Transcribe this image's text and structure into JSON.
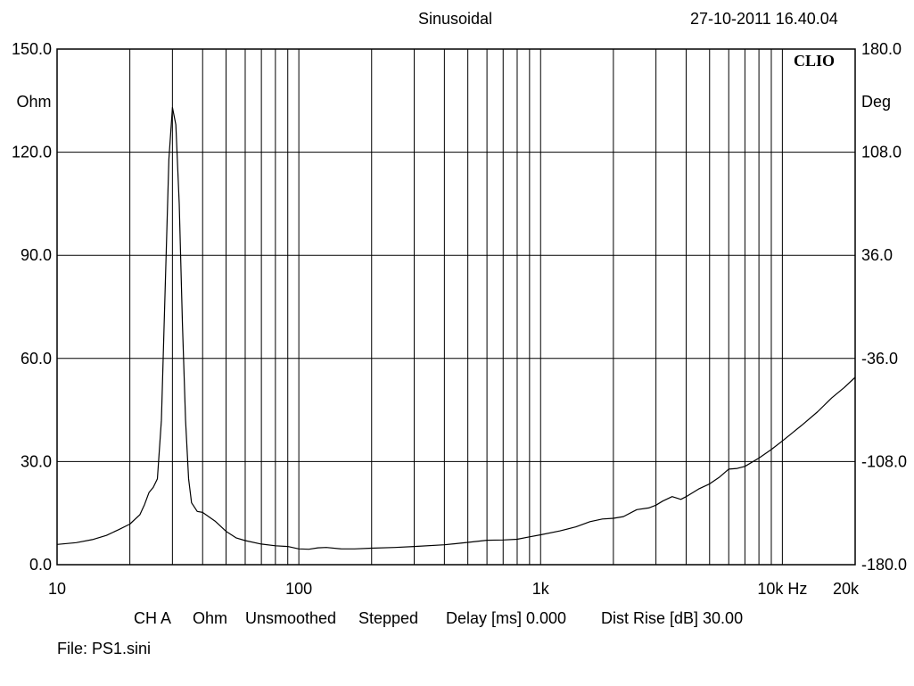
{
  "header": {
    "title": "Sinusoidal",
    "timestamp": "27-10-2011 16.40.04"
  },
  "footer": {
    "channel": "CH A",
    "unit": "Ohm",
    "smoothing": "Unsmoothed",
    "mode": "Stepped",
    "delay": "Delay [ms] 0.000",
    "dist_rise": "Dist Rise [dB] 30.00",
    "file": "File: PS1.sini"
  },
  "chart_data": {
    "type": "line",
    "brand": "CLIO",
    "x_scale": "log",
    "xlim": [
      10,
      20000
    ],
    "grid": true,
    "y_left": {
      "unit": "Ohm",
      "range": [
        0,
        150
      ],
      "ticks": [
        "150.0",
        "120.0",
        "90.0",
        "60.0",
        "30.0",
        "0.0"
      ]
    },
    "y_right": {
      "unit": "Deg",
      "range": [
        -180,
        180
      ],
      "ticks": [
        "180.0",
        "108.0",
        "36.0",
        "-36.0",
        "-108.0",
        "-180.0"
      ]
    },
    "x_tick_labels": [
      {
        "value": 10,
        "label": "10"
      },
      {
        "value": 100,
        "label": "100"
      },
      {
        "value": 1000,
        "label": "1k"
      },
      {
        "value": 10000,
        "label": "10k Hz"
      },
      {
        "value": 20000,
        "label": "20k"
      }
    ],
    "series": [
      {
        "color": "#000000",
        "x": [
          10,
          12,
          14,
          16,
          18,
          20,
          22,
          23,
          24,
          25,
          26,
          27,
          28,
          29,
          30,
          31,
          32,
          33,
          34,
          35,
          36,
          38,
          40,
          45,
          50,
          55,
          60,
          70,
          80,
          90,
          100,
          110,
          120,
          130,
          150,
          170,
          200,
          250,
          300,
          400,
          500,
          600,
          700,
          800,
          900,
          1000,
          1200,
          1400,
          1600,
          1800,
          2000,
          2200,
          2500,
          2800,
          3000,
          3200,
          3500,
          3800,
          4000,
          4500,
          5000,
          5500,
          6000,
          6500,
          7000,
          8000,
          9000,
          10000,
          12000,
          14000,
          16000,
          18000,
          20000
        ],
        "y": [
          5.9,
          6.4,
          7.3,
          8.5,
          10.2,
          11.8,
          14.5,
          17.5,
          21,
          22.5,
          25,
          42,
          80,
          118,
          133,
          128,
          105,
          70,
          42,
          25,
          18,
          15.5,
          15.2,
          12.7,
          9.7,
          7.8,
          7.0,
          6.0,
          5.5,
          5.3,
          4.6,
          4.5,
          4.9,
          5.0,
          4.6,
          4.6,
          4.8,
          5.0,
          5.3,
          5.8,
          6.5,
          7.1,
          7.2,
          7.4,
          8.1,
          8.7,
          9.8,
          11.0,
          12.5,
          13.3,
          13.5,
          14.0,
          16.0,
          16.5,
          17.3,
          18.5,
          19.8,
          19.0,
          19.8,
          22.0,
          23.5,
          25.5,
          27.8,
          28.0,
          28.6,
          31.0,
          33.5,
          36.0,
          40.5,
          44.5,
          48.5,
          51.5,
          54.5
        ]
      }
    ]
  }
}
